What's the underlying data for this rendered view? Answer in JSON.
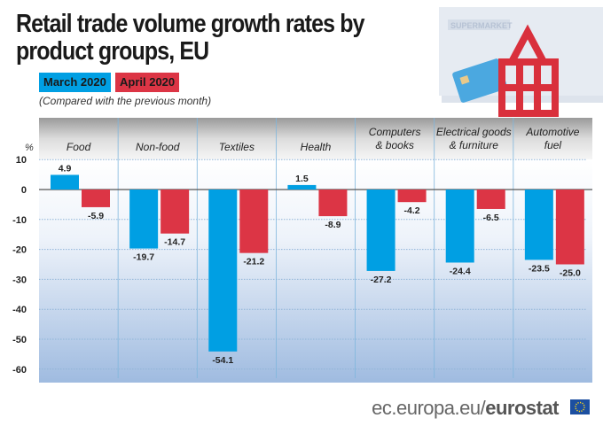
{
  "chart_data": {
    "type": "bar",
    "title": "Retail trade volume growth rates by product groups, EU",
    "subtitle": "(Compared with the previous month)",
    "ylabel": "%",
    "ylim": [
      -60,
      10
    ],
    "yticks": [
      "10",
      "0",
      "-10",
      "-20",
      "-30",
      "-40",
      "-50",
      "-60"
    ],
    "grid": true,
    "legend_placement": "top-left",
    "categories": [
      [
        "Food"
      ],
      [
        "Non-food"
      ],
      [
        "Textiles"
      ],
      [
        "Health"
      ],
      [
        "Computers",
        "& books"
      ],
      [
        "Electrical goods",
        "& furniture"
      ],
      [
        "Automotive",
        "fuel"
      ]
    ],
    "series": [
      {
        "name": "March 2020",
        "color": "#009fe3",
        "values": [
          4.9,
          -19.7,
          -54.1,
          1.5,
          -27.2,
          -24.4,
          -23.5
        ],
        "labels": [
          "4.9",
          "-19.7",
          "-54.1",
          "1.5",
          "-27.2",
          "-24.4",
          "-23.5"
        ]
      },
      {
        "name": "April 2020",
        "color": "#dc3545",
        "values": [
          -5.9,
          -14.7,
          -21.2,
          -8.9,
          -4.2,
          -6.5,
          -25.0
        ],
        "labels": [
          "-5.9",
          "-14.7",
          "-21.2",
          "-8.9",
          "-4.2",
          "-6.5",
          "-25.0"
        ]
      }
    ]
  },
  "illustration": {
    "sign_text": "SUPERMARKET",
    "icons": [
      "shopping-basket-icon",
      "credit-card-icon"
    ]
  },
  "footer": {
    "domain": "ec.europa.eu/",
    "brand": "eurostat",
    "logo": "eu-flag-icon"
  }
}
